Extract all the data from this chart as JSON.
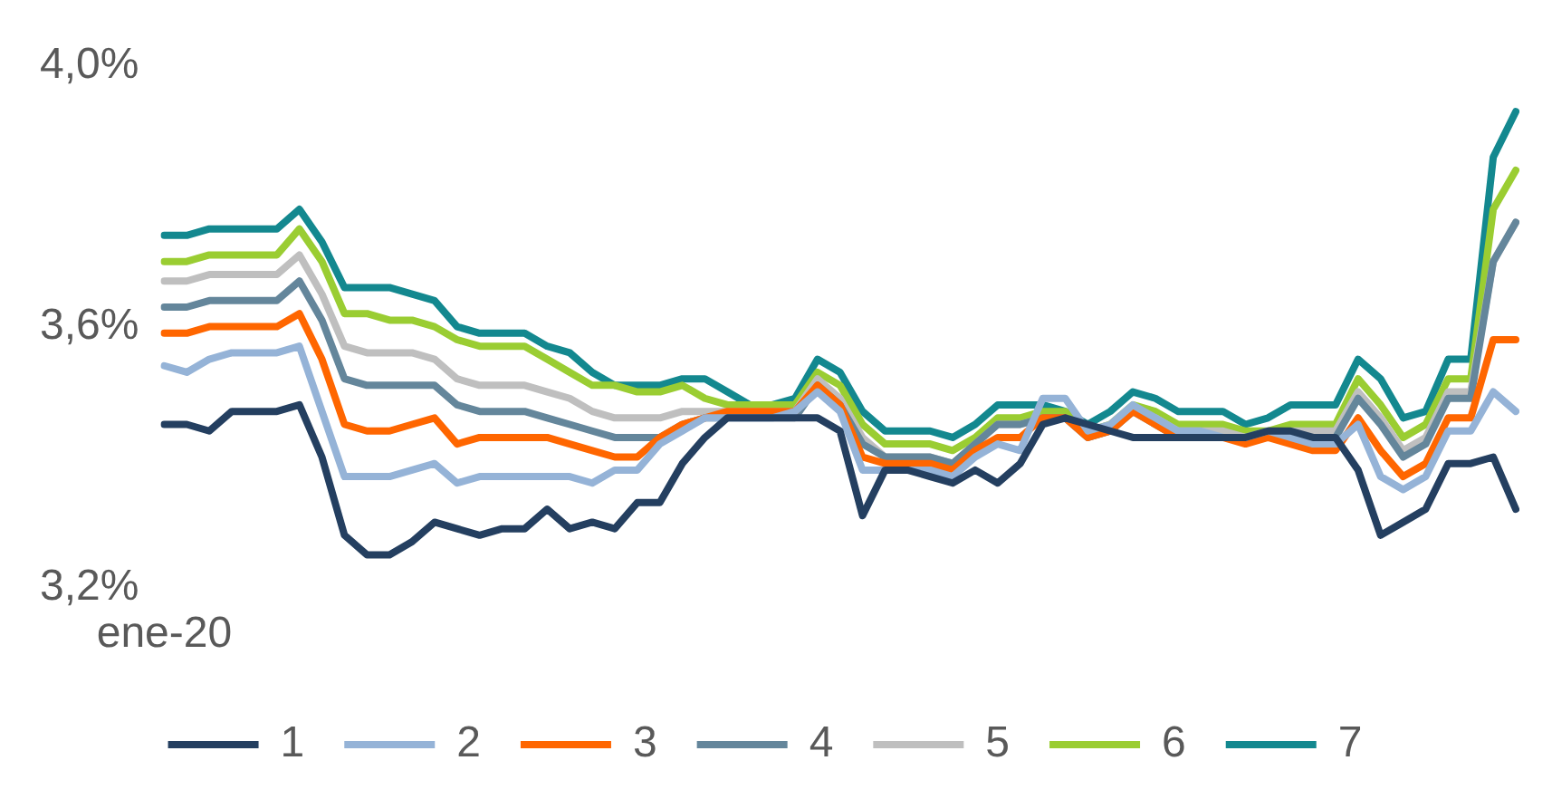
{
  "chart_data": {
    "type": "line",
    "categories": [
      "ene-20",
      null,
      null,
      null,
      null,
      null,
      null,
      null,
      null,
      null,
      null,
      null,
      null,
      null,
      null,
      null,
      null,
      null,
      null,
      null,
      null,
      null,
      null,
      null,
      null,
      null,
      null,
      null,
      null,
      null,
      null,
      null,
      null,
      null,
      null,
      null,
      null,
      null,
      null,
      null,
      null,
      null,
      null,
      null,
      null,
      null,
      null,
      null,
      null,
      null,
      null,
      null,
      null,
      null,
      null,
      null,
      null,
      null,
      null,
      null,
      null
    ],
    "ylim": [
      3.2,
      4.0
    ],
    "yticks": [
      {
        "value": 3.2,
        "label": "3,2%"
      },
      {
        "value": 3.6,
        "label": "3,6%"
      },
      {
        "value": 4.0,
        "label": "4,0%"
      }
    ],
    "grid": false,
    "legend": "bottom",
    "marker": "none",
    "line_style": "solid",
    "series": [
      {
        "name": "1",
        "color": "#243f60",
        "values": [
          3.45,
          3.45,
          3.44,
          3.47,
          3.47,
          3.47,
          3.48,
          3.4,
          3.28,
          3.25,
          3.25,
          3.27,
          3.3,
          3.29,
          3.28,
          3.29,
          3.29,
          3.32,
          3.29,
          3.3,
          3.29,
          3.33,
          3.33,
          3.39,
          3.43,
          3.46,
          3.46,
          3.46,
          3.46,
          3.46,
          3.44,
          3.31,
          3.38,
          3.38,
          3.37,
          3.36,
          3.38,
          3.36,
          3.39,
          3.45,
          3.46,
          3.45,
          3.44,
          3.43,
          3.43,
          3.43,
          3.43,
          3.43,
          3.43,
          3.44,
          3.44,
          3.43,
          3.43,
          3.38,
          3.28,
          3.3,
          3.32,
          3.39,
          3.39,
          3.4,
          3.32
        ]
      },
      {
        "name": "2",
        "color": "#95b3d7",
        "values": [
          3.54,
          3.53,
          3.55,
          3.56,
          3.56,
          3.56,
          3.57,
          3.47,
          3.37,
          3.37,
          3.37,
          3.38,
          3.39,
          3.36,
          3.37,
          3.37,
          3.37,
          3.37,
          3.37,
          3.36,
          3.38,
          3.38,
          3.42,
          3.44,
          3.46,
          3.46,
          3.46,
          3.46,
          3.47,
          3.5,
          3.47,
          3.38,
          3.38,
          3.38,
          3.38,
          3.37,
          3.4,
          3.42,
          3.41,
          3.49,
          3.49,
          3.44,
          3.45,
          3.48,
          3.46,
          3.44,
          3.44,
          3.43,
          3.43,
          3.44,
          3.43,
          3.42,
          3.42,
          3.45,
          3.37,
          3.35,
          3.37,
          3.44,
          3.44,
          3.5,
          3.47
        ]
      },
      {
        "name": "3",
        "color": "#ff6600",
        "values": [
          3.59,
          3.59,
          3.6,
          3.6,
          3.6,
          3.6,
          3.62,
          3.55,
          3.45,
          3.44,
          3.44,
          3.45,
          3.46,
          3.42,
          3.43,
          3.43,
          3.43,
          3.43,
          3.42,
          3.41,
          3.4,
          3.4,
          3.43,
          3.45,
          3.46,
          3.47,
          3.47,
          3.47,
          3.47,
          3.51,
          3.48,
          3.4,
          3.39,
          3.39,
          3.39,
          3.38,
          3.41,
          3.43,
          3.43,
          3.46,
          3.46,
          3.43,
          3.44,
          3.47,
          3.45,
          3.43,
          3.43,
          3.43,
          3.42,
          3.43,
          3.42,
          3.41,
          3.41,
          3.46,
          3.41,
          3.37,
          3.39,
          3.46,
          3.46,
          3.58,
          3.58
        ]
      },
      {
        "name": "4",
        "color": "#64869b",
        "values": [
          3.63,
          3.63,
          3.64,
          3.64,
          3.64,
          3.64,
          3.67,
          3.61,
          3.52,
          3.51,
          3.51,
          3.51,
          3.51,
          3.48,
          3.47,
          3.47,
          3.47,
          3.46,
          3.45,
          3.44,
          3.43,
          3.43,
          3.43,
          3.45,
          3.46,
          3.46,
          3.46,
          3.46,
          3.46,
          3.51,
          3.48,
          3.42,
          3.4,
          3.4,
          3.4,
          3.39,
          3.42,
          3.45,
          3.45,
          3.46,
          3.46,
          3.43,
          3.44,
          3.47,
          3.45,
          3.43,
          3.43,
          3.43,
          3.43,
          3.43,
          3.43,
          3.43,
          3.43,
          3.49,
          3.45,
          3.4,
          3.42,
          3.49,
          3.49,
          3.7,
          3.76
        ]
      },
      {
        "name": "5",
        "color": "#bfbfbf",
        "values": [
          3.67,
          3.67,
          3.68,
          3.68,
          3.68,
          3.68,
          3.71,
          3.65,
          3.57,
          3.56,
          3.56,
          3.56,
          3.55,
          3.52,
          3.51,
          3.51,
          3.51,
          3.5,
          3.49,
          3.47,
          3.46,
          3.46,
          3.46,
          3.47,
          3.47,
          3.47,
          3.47,
          3.47,
          3.47,
          3.52,
          3.49,
          3.43,
          3.4,
          3.4,
          3.4,
          3.39,
          3.42,
          3.45,
          3.45,
          3.46,
          3.46,
          3.43,
          3.44,
          3.47,
          3.46,
          3.44,
          3.44,
          3.44,
          3.43,
          3.43,
          3.44,
          3.44,
          3.44,
          3.5,
          3.46,
          3.41,
          3.43,
          3.5,
          3.5,
          3.7,
          3.76
        ]
      },
      {
        "name": "6",
        "color": "#9acd32",
        "values": [
          3.7,
          3.7,
          3.71,
          3.71,
          3.71,
          3.71,
          3.75,
          3.7,
          3.62,
          3.62,
          3.61,
          3.61,
          3.6,
          3.58,
          3.57,
          3.57,
          3.57,
          3.55,
          3.53,
          3.51,
          3.51,
          3.5,
          3.5,
          3.51,
          3.49,
          3.48,
          3.48,
          3.48,
          3.48,
          3.53,
          3.51,
          3.45,
          3.42,
          3.42,
          3.42,
          3.41,
          3.43,
          3.46,
          3.46,
          3.47,
          3.47,
          3.44,
          3.45,
          3.48,
          3.47,
          3.45,
          3.45,
          3.45,
          3.44,
          3.44,
          3.45,
          3.45,
          3.45,
          3.52,
          3.48,
          3.43,
          3.45,
          3.52,
          3.52,
          3.78,
          3.84
        ]
      },
      {
        "name": "7",
        "color": "#13888f",
        "values": [
          3.74,
          3.74,
          3.75,
          3.75,
          3.75,
          3.75,
          3.78,
          3.73,
          3.66,
          3.66,
          3.66,
          3.65,
          3.64,
          3.6,
          3.59,
          3.59,
          3.59,
          3.57,
          3.56,
          3.53,
          3.51,
          3.51,
          3.51,
          3.52,
          3.52,
          3.5,
          3.48,
          3.48,
          3.49,
          3.55,
          3.53,
          3.47,
          3.44,
          3.44,
          3.44,
          3.43,
          3.45,
          3.48,
          3.48,
          3.48,
          3.47,
          3.45,
          3.47,
          3.5,
          3.49,
          3.47,
          3.47,
          3.47,
          3.45,
          3.46,
          3.48,
          3.48,
          3.48,
          3.55,
          3.52,
          3.46,
          3.47,
          3.55,
          3.55,
          3.86,
          3.93
        ]
      }
    ]
  }
}
